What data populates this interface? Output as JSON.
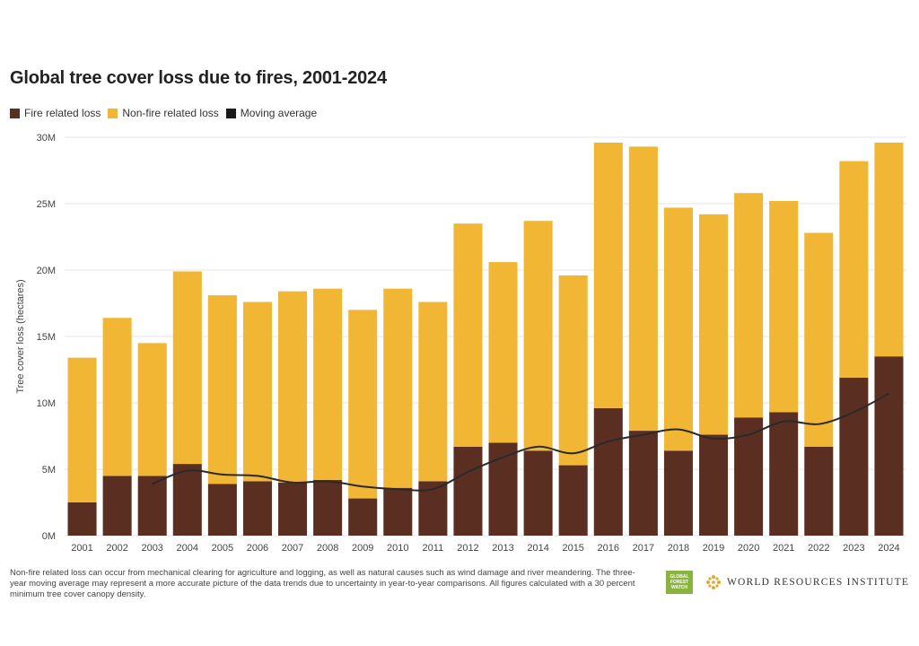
{
  "header": {
    "title": "Global tree cover loss due to fires, 2001-2024"
  },
  "legend": {
    "items": [
      {
        "label": "Fire related loss",
        "color": "#5a2f22"
      },
      {
        "label": "Non-fire related loss",
        "color": "#f1b633"
      },
      {
        "label": "Moving average",
        "color": "#1a1a1a"
      }
    ]
  },
  "chart_data": {
    "type": "bar",
    "stacked": true,
    "title": "Global tree cover loss due to fires, 2001-2024",
    "xlabel": "",
    "ylabel": "Tree cover loss (hectares)",
    "ylim": [
      0,
      30000000
    ],
    "y_ticks": [
      0,
      5000000,
      10000000,
      15000000,
      20000000,
      25000000,
      30000000
    ],
    "y_tick_labels": [
      "0M",
      "5M",
      "10M",
      "15M",
      "20M",
      "25M",
      "30M"
    ],
    "categories": [
      "2001",
      "2002",
      "2003",
      "2004",
      "2005",
      "2006",
      "2007",
      "2008",
      "2009",
      "2010",
      "2011",
      "2012",
      "2013",
      "2014",
      "2015",
      "2016",
      "2017",
      "2018",
      "2019",
      "2020",
      "2021",
      "2022",
      "2023",
      "2024"
    ],
    "series": [
      {
        "name": "Fire related loss",
        "color": "#5a2f22",
        "values": [
          2500000,
          4500000,
          4500000,
          5400000,
          3900000,
          4100000,
          4000000,
          4200000,
          2800000,
          3600000,
          4100000,
          6700000,
          7000000,
          6400000,
          5300000,
          9600000,
          7900000,
          6400000,
          7600000,
          8900000,
          9300000,
          6700000,
          11900000,
          13500000
        ]
      },
      {
        "name": "Non-fire related loss",
        "color": "#f1b633",
        "values": [
          10900000,
          11900000,
          10000000,
          14500000,
          14200000,
          13500000,
          14400000,
          14400000,
          14200000,
          15000000,
          13500000,
          16800000,
          13600000,
          17300000,
          14300000,
          20000000,
          21400000,
          18300000,
          16600000,
          16900000,
          15900000,
          16100000,
          16300000,
          16100000
        ]
      },
      {
        "name": "Moving average",
        "type": "line",
        "color": "#2a2a2a",
        "values": [
          null,
          null,
          3900000,
          4900000,
          4600000,
          4500000,
          4000000,
          4100000,
          3700000,
          3500000,
          3500000,
          4800000,
          5900000,
          6700000,
          6200000,
          7100000,
          7600000,
          8000000,
          7300000,
          7600000,
          8600000,
          8400000,
          9300000,
          10700000
        ]
      }
    ],
    "grid": true,
    "legend_position": "top-left"
  },
  "footer": {
    "note": "Non-fire related loss can occur from mechanical clearing for agriculture and logging, as well as natural causes such as wind damage and river meandering. The three-year moving average may represent a more accurate picture of the data trends due to uncertainty in year-to-year comparisons. All figures calculated with a 30 percent minimum tree cover canopy density.",
    "gfw_logo_text": "GLOBAL FOREST WATCH",
    "wri_name": "WORLD RESOURCES INSTITUTE"
  }
}
